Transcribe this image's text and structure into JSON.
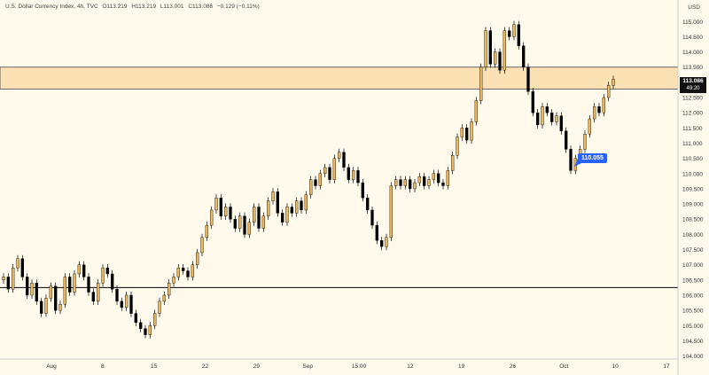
{
  "header": {
    "symbol": "U.S. Dollar Currency Index, 4h, TVC",
    "open": "O113.219",
    "high": "H113.219",
    "low": "L113.001",
    "close": "C113.086",
    "change": "−0.129 (−0.11%)"
  },
  "currency": "USD",
  "price_tag": {
    "price": "113.086",
    "countdown": "49:20"
  },
  "callout_label": "110.055",
  "colors": {
    "background": "#fffaec",
    "zone_fill": "#fbe1b4",
    "zone_border": "#444444",
    "up_candle": "#f0b860",
    "down_candle": "#000000",
    "callout": "#2962ff"
  },
  "chart_data": {
    "type": "candlestick",
    "y_axis": {
      "ticks": [
        "115.000",
        "114.500",
        "114.000",
        "113.500",
        "113.000",
        "112.500",
        "112.000",
        "111.500",
        "111.000",
        "110.500",
        "110.000",
        "109.500",
        "109.000",
        "108.500",
        "108.000",
        "107.500",
        "107.000",
        "106.500",
        "106.000",
        "105.500",
        "105.000",
        "104.500",
        "104.000"
      ],
      "range": [
        103.9,
        115.3
      ]
    },
    "x_axis": {
      "ticks": [
        "Aug",
        "8",
        "15",
        "22",
        "29",
        "Sep",
        "15:00",
        "12",
        "19",
        "26",
        "Oct",
        "10",
        "17"
      ]
    },
    "resistance_zone": [
      112.78,
      113.5
    ],
    "support_line": 106.25,
    "closes": [
      106.6,
      106.2,
      106.9,
      107.2,
      106.6,
      106.0,
      106.4,
      105.8,
      105.4,
      105.9,
      106.3,
      105.5,
      105.7,
      106.6,
      106.1,
      106.7,
      107.0,
      106.6,
      106.1,
      105.8,
      106.4,
      106.9,
      106.7,
      106.2,
      105.8,
      105.6,
      106.0,
      105.4,
      105.1,
      104.9,
      104.7,
      105.0,
      105.4,
      105.8,
      106.0,
      106.4,
      106.6,
      106.9,
      106.8,
      106.6,
      107.0,
      107.4,
      107.9,
      108.3,
      108.8,
      109.2,
      108.6,
      108.9,
      108.5,
      108.2,
      108.6,
      108.0,
      108.4,
      108.9,
      108.2,
      108.6,
      109.1,
      109.4,
      108.7,
      108.4,
      108.9,
      108.7,
      109.1,
      108.8,
      109.3,
      109.8,
      109.6,
      110.0,
      110.2,
      109.8,
      110.5,
      110.7,
      110.2,
      109.8,
      110.1,
      109.7,
      109.2,
      108.8,
      108.3,
      107.8,
      107.6,
      107.9,
      109.6,
      109.8,
      109.6,
      109.8,
      109.5,
      109.7,
      109.9,
      109.6,
      109.8,
      110.0,
      109.7,
      109.6,
      110.1,
      110.6,
      111.2,
      111.5,
      111.1,
      111.7,
      112.4,
      113.5,
      114.7,
      113.6,
      114.0,
      113.4,
      114.7,
      114.5,
      114.9,
      114.2,
      113.5,
      112.7,
      112.0,
      111.6,
      112.2,
      112.0,
      111.7,
      111.9,
      111.4,
      110.8,
      110.1,
      110.5,
      110.8,
      111.3,
      111.8,
      112.2,
      112.0,
      112.5,
      112.9,
      113.1
    ]
  }
}
